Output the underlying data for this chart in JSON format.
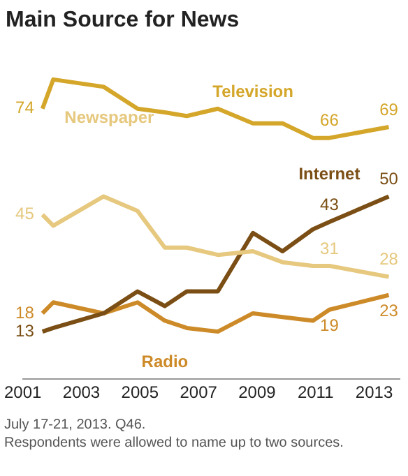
{
  "chart_data": {
    "type": "line",
    "title": "Main Source for News",
    "x": [
      2001.67,
      2002.04,
      2003.76,
      2004.92,
      2005.85,
      2006.6,
      2007.66,
      2008.86,
      2009.87,
      2010.91,
      2011.47,
      2013.5
    ],
    "xlim": [
      2001,
      2013.87
    ],
    "xticks": [
      2001,
      2003,
      2005,
      2007,
      2009,
      2011,
      2013
    ],
    "tick_labels": "x",
    "grid": false,
    "legend": false,
    "marker": "none",
    "line_style": "solid",
    "series": [
      {
        "name": "Television",
        "color": "#d4a62a",
        "values": [
          74,
          82,
          80,
          74,
          73,
          72,
          74,
          70,
          70,
          66,
          66,
          69
        ],
        "value_labels": [
          "74",
          null,
          null,
          null,
          null,
          null,
          null,
          null,
          null,
          null,
          "66",
          "69"
        ]
      },
      {
        "name": "Newspaper",
        "color": "#e6c87e",
        "values": [
          45,
          42,
          50,
          46,
          36,
          36,
          34,
          35,
          32,
          31,
          31,
          28
        ],
        "value_labels": [
          "45",
          null,
          null,
          null,
          null,
          null,
          null,
          null,
          null,
          null,
          "31",
          "28"
        ]
      },
      {
        "name": "Internet",
        "color": "#7a4e14",
        "values": [
          13,
          14,
          18,
          24,
          20,
          24,
          24,
          40,
          35,
          41,
          43,
          50
        ],
        "value_labels": [
          "13",
          null,
          null,
          null,
          null,
          null,
          null,
          null,
          null,
          null,
          "43",
          "50"
        ]
      },
      {
        "name": "Radio",
        "color": "#cd8a28",
        "values": [
          18,
          21,
          18,
          21,
          16,
          14,
          13,
          18,
          17,
          16,
          19,
          23
        ],
        "value_labels": [
          "18",
          null,
          null,
          null,
          null,
          null,
          null,
          null,
          null,
          null,
          "19",
          "23"
        ]
      }
    ],
    "annotations": [
      "July 17-21, 2013. Q46.",
      "Respondents were allowed to name up to two sources."
    ]
  }
}
